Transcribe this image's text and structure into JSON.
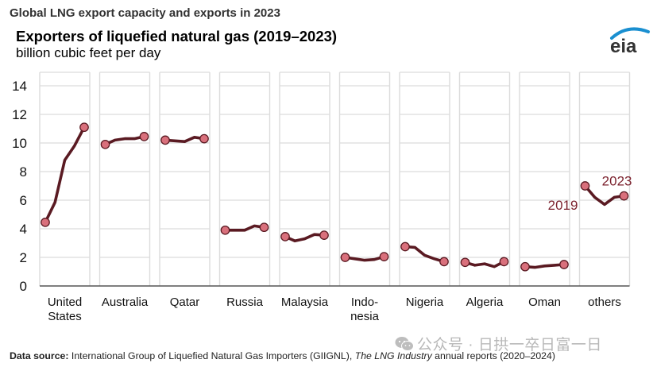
{
  "header": {
    "supertitle": "Global LNG export capacity and exports in 2023",
    "title": "Exporters of liquefied natural gas (2019–2023)",
    "subtitle": "billion cubic feet per day",
    "logo_text": "eia"
  },
  "footer": {
    "source_label": "Data source:",
    "source_text_1": " International Group of Liquefied Natural Gas Importers (GIIGNL), ",
    "source_italic": "The LNG Industry",
    "source_text_2": " annual reports (2020–2024)"
  },
  "watermark": {
    "text": "公众号 · 日拱一卒日富一日",
    "icon": "wechat-icon"
  },
  "colors": {
    "line": "#5a1a22",
    "marker_fill": "#d9707c",
    "marker_stroke": "#5a1a22",
    "annotation": "#7a1f2b",
    "grid": "#dcdcdc",
    "axis": "#555555"
  },
  "chart_data": {
    "type": "line",
    "title": "Exporters of liquefied natural gas (2019–2023)",
    "ylabel": "billion cubic feet per day",
    "xlabel": "",
    "ylim": [
      0,
      14
    ],
    "yticks": [
      0,
      2,
      4,
      6,
      8,
      10,
      12,
      14
    ],
    "grid": true,
    "years": [
      2019,
      2020,
      2021,
      2022,
      2023
    ],
    "panels": [
      {
        "name": "United States",
        "label_lines": [
          "United",
          "States"
        ],
        "values": [
          4.45,
          5.85,
          8.8,
          9.8,
          11.1
        ]
      },
      {
        "name": "Australia",
        "label_lines": [
          "Australia"
        ],
        "values": [
          9.9,
          10.2,
          10.3,
          10.3,
          10.45
        ]
      },
      {
        "name": "Qatar",
        "label_lines": [
          "Qatar"
        ],
        "values": [
          10.2,
          10.15,
          10.1,
          10.4,
          10.3
        ]
      },
      {
        "name": "Russia",
        "label_lines": [
          "Russia"
        ],
        "values": [
          3.9,
          3.9,
          3.9,
          4.2,
          4.1
        ]
      },
      {
        "name": "Malaysia",
        "label_lines": [
          "Malaysia"
        ],
        "values": [
          3.45,
          3.15,
          3.3,
          3.6,
          3.55
        ]
      },
      {
        "name": "Indonesia",
        "label_lines": [
          "Indo-",
          "nesia"
        ],
        "values": [
          2.0,
          1.9,
          1.8,
          1.85,
          2.05
        ]
      },
      {
        "name": "Nigeria",
        "label_lines": [
          "Nigeria"
        ],
        "values": [
          2.75,
          2.7,
          2.15,
          1.9,
          1.7
        ]
      },
      {
        "name": "Algeria",
        "label_lines": [
          "Algeria"
        ],
        "values": [
          1.65,
          1.45,
          1.55,
          1.35,
          1.7
        ]
      },
      {
        "name": "Oman",
        "label_lines": [
          "Oman"
        ],
        "values": [
          1.35,
          1.3,
          1.4,
          1.45,
          1.5
        ]
      },
      {
        "name": "others",
        "label_lines": [
          "others"
        ],
        "values": [
          7.0,
          6.2,
          5.7,
          6.2,
          6.3
        ]
      }
    ],
    "annotations": [
      {
        "text": "2019",
        "panel": "others",
        "year": 2019
      },
      {
        "text": "2023",
        "panel": "others",
        "year": 2023
      }
    ]
  }
}
